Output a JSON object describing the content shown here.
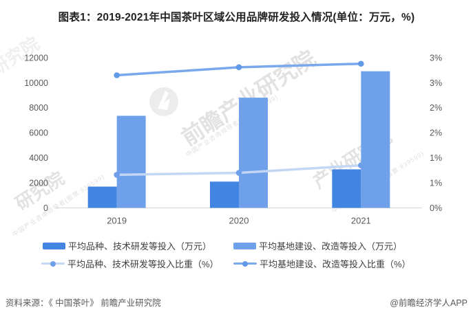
{
  "header": {
    "title": "图表1：2019-2021年中国茶叶区域公用品牌研发投入情况(单位：万元，%)"
  },
  "chart_data": {
    "type": "bar+line",
    "categories": [
      "2019",
      "2020",
      "2021"
    ],
    "series": [
      {
        "name": "平均品种、技术研发等投入（万元）",
        "type": "bar",
        "axis": "left",
        "values": [
          1700,
          2100,
          3080
        ],
        "color": "#4184e1"
      },
      {
        "name": "平均基地建设、改造等投入（万元）",
        "type": "bar",
        "axis": "left",
        "values": [
          7360,
          8810,
          10920
        ],
        "color": "#6fa1ea"
      },
      {
        "name": "平均品种、技术研发等投入比重（%）",
        "type": "line",
        "axis": "right",
        "values": [
          0.66,
          0.7,
          0.85
        ],
        "color": "#c3d7f5",
        "dot_color": "#6da0e8"
      },
      {
        "name": "平均基地建设、改造等投入比重（%）",
        "type": "line",
        "axis": "right",
        "values": [
          2.65,
          2.81,
          2.88
        ],
        "color": "#7aa8ec",
        "dot_color": "#619ae7"
      }
    ],
    "y_left": {
      "min": 0,
      "max": 12000,
      "tick_step": 2000,
      "tick_labels": [
        "0",
        "2000",
        "4000",
        "6000",
        "8000",
        "10000",
        "12000"
      ]
    },
    "y_right": {
      "min": 0,
      "max": 3,
      "tick_labels": [
        "0%",
        "1%",
        "1%",
        "2%",
        "2%",
        "3%",
        "3%"
      ]
    },
    "grid": false,
    "legend_position": "bottom",
    "axis_line_color": "#d9d9d9"
  },
  "footer": {
    "source": "资料来源：《 中国茶叶》 前瞻产业研究院",
    "credit": "@前瞻经济学人APP"
  },
  "watermark": {
    "pieces": [
      "前瞻产业研究院",
      "产业研究院",
      "研究院"
    ],
    "tagline": "中国产业咨询领导者(股票:839599)"
  }
}
